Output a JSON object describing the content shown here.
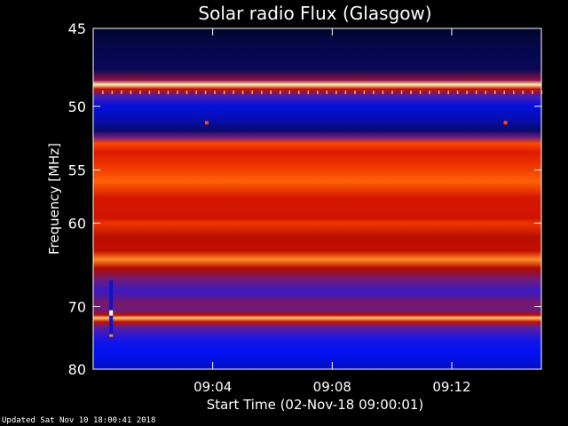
{
  "chart_data": {
    "type": "heatmap",
    "title": "Solar radio Flux (Glasgow)",
    "ylabel": "Frequency [MHz]",
    "xlabel": "Start Time (02-Nov-18 09:00:01)",
    "y_range_mhz": [
      45,
      80
    ],
    "y_scale": "reciprocal",
    "x_range_minutes": [
      0,
      15
    ],
    "y_ticks": [
      45,
      50,
      55,
      60,
      70,
      80
    ],
    "x_ticks": [
      {
        "minute": 4,
        "label": "09:04"
      },
      {
        "minute": 8,
        "label": "09:08"
      },
      {
        "minute": 12,
        "label": "09:12"
      }
    ],
    "grid": false,
    "colormap": [
      "#000000",
      "#0a0a6e",
      "#0012ff",
      "#5a1fa0",
      "#b00a00",
      "#e01a00",
      "#ff5a00",
      "#ffb040",
      "#ffffcc"
    ],
    "emission_profile": [
      {
        "mhz": 45.0,
        "level": 0.05
      },
      {
        "mhz": 45.8,
        "level": 0.08
      },
      {
        "mhz": 47.5,
        "level": 0.1
      },
      {
        "mhz": 48.2,
        "level": 0.45
      },
      {
        "mhz": 48.5,
        "level": 0.98
      },
      {
        "mhz": 48.8,
        "level": 0.55
      },
      {
        "mhz": 49.3,
        "level": 0.35
      },
      {
        "mhz": 50.0,
        "level": 0.22
      },
      {
        "mhz": 51.0,
        "level": 0.18
      },
      {
        "mhz": 51.8,
        "level": 0.12
      },
      {
        "mhz": 52.3,
        "level": 0.4
      },
      {
        "mhz": 52.8,
        "level": 0.72
      },
      {
        "mhz": 53.5,
        "level": 0.62
      },
      {
        "mhz": 55.0,
        "level": 0.7
      },
      {
        "mhz": 56.0,
        "level": 0.76
      },
      {
        "mhz": 57.5,
        "level": 0.6
      },
      {
        "mhz": 59.5,
        "level": 0.58
      },
      {
        "mhz": 60.0,
        "level": 0.68
      },
      {
        "mhz": 61.5,
        "level": 0.52
      },
      {
        "mhz": 63.0,
        "level": 0.55
      },
      {
        "mhz": 64.0,
        "level": 0.82
      },
      {
        "mhz": 65.0,
        "level": 0.5
      },
      {
        "mhz": 66.5,
        "level": 0.4
      },
      {
        "mhz": 68.0,
        "level": 0.33
      },
      {
        "mhz": 69.5,
        "level": 0.42
      },
      {
        "mhz": 70.5,
        "level": 0.4
      },
      {
        "mhz": 71.2,
        "level": 0.52
      },
      {
        "mhz": 71.6,
        "level": 0.92
      },
      {
        "mhz": 72.2,
        "level": 0.55
      },
      {
        "mhz": 73.0,
        "level": 0.38
      },
      {
        "mhz": 75.0,
        "level": 0.28
      },
      {
        "mhz": 77.0,
        "level": 0.24
      },
      {
        "mhz": 80.0,
        "level": 0.2
      }
    ],
    "features": [
      {
        "type": "vertical_streak",
        "minute": 0.6,
        "mhz_from": 66.5,
        "mhz_to": 74.5
      },
      {
        "type": "dot",
        "minute": 3.8,
        "mhz": 51.2
      },
      {
        "type": "dot",
        "minute": 13.8,
        "mhz": 51.2
      }
    ]
  },
  "footer": {
    "updated": "Updated Sat Nov 10 18:00:41 2018"
  }
}
